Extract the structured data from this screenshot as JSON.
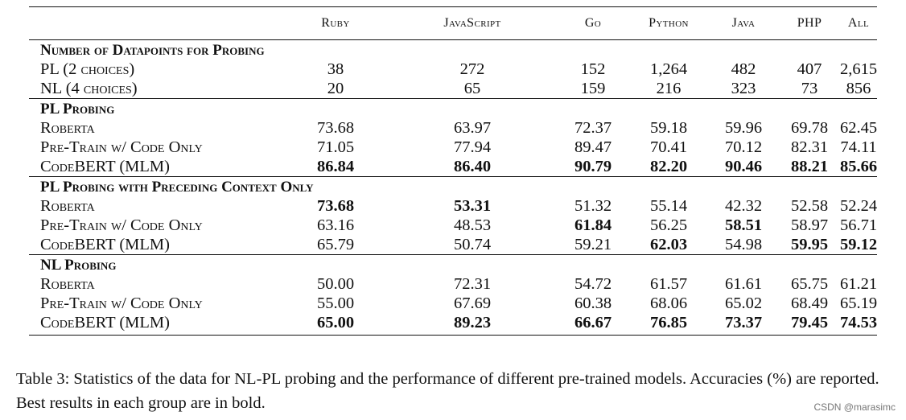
{
  "columns": [
    "Ruby",
    "JavaScript",
    "Go",
    "Python",
    "Java",
    "PHP",
    "All"
  ],
  "groups": [
    {
      "title": "Number of Datapoints for Probing",
      "rows": [
        {
          "label": "PL (2 choices)",
          "values": [
            "38",
            "272",
            "152",
            "1,264",
            "482",
            "407",
            "2,615"
          ],
          "bold": [
            false,
            false,
            false,
            false,
            false,
            false,
            false
          ]
        },
        {
          "label": "NL (4 choices)",
          "values": [
            "20",
            "65",
            "159",
            "216",
            "323",
            "73",
            "856"
          ],
          "bold": [
            false,
            false,
            false,
            false,
            false,
            false,
            false
          ]
        }
      ]
    },
    {
      "title": "PL Probing",
      "rows": [
        {
          "label": "Roberta",
          "values": [
            "73.68",
            "63.97",
            "72.37",
            "59.18",
            "59.96",
            "69.78",
            "62.45"
          ],
          "bold": [
            false,
            false,
            false,
            false,
            false,
            false,
            false
          ]
        },
        {
          "label": "Pre-Train w/ Code Only",
          "values": [
            "71.05",
            "77.94",
            "89.47",
            "70.41",
            "70.12",
            "82.31",
            "74.11"
          ],
          "bold": [
            false,
            false,
            false,
            false,
            false,
            false,
            false
          ]
        },
        {
          "label": "CodeBERT (MLM)",
          "values": [
            "86.84",
            "86.40",
            "90.79",
            "82.20",
            "90.46",
            "88.21",
            "85.66"
          ],
          "bold": [
            true,
            true,
            true,
            true,
            true,
            true,
            true
          ]
        }
      ]
    },
    {
      "title": "PL Probing with Preceding Context Only",
      "rows": [
        {
          "label": "Roberta",
          "values": [
            "73.68",
            "53.31",
            "51.32",
            "55.14",
            "42.32",
            "52.58",
            "52.24"
          ],
          "bold": [
            true,
            true,
            false,
            false,
            false,
            false,
            false
          ]
        },
        {
          "label": "Pre-Train w/ Code Only",
          "values": [
            "63.16",
            "48.53",
            "61.84",
            "56.25",
            "58.51",
            "58.97",
            "56.71"
          ],
          "bold": [
            false,
            false,
            true,
            false,
            true,
            false,
            false
          ]
        },
        {
          "label": "CodeBERT (MLM)",
          "values": [
            "65.79",
            "50.74",
            "59.21",
            "62.03",
            "54.98",
            "59.95",
            "59.12"
          ],
          "bold": [
            false,
            false,
            false,
            true,
            false,
            true,
            true
          ]
        }
      ]
    },
    {
      "title": "NL Probing",
      "rows": [
        {
          "label": "Roberta",
          "values": [
            "50.00",
            "72.31",
            "54.72",
            "61.57",
            "61.61",
            "65.75",
            "61.21"
          ],
          "bold": [
            false,
            false,
            false,
            false,
            false,
            false,
            false
          ]
        },
        {
          "label": "Pre-Train w/ Code Only",
          "values": [
            "55.00",
            "67.69",
            "60.38",
            "68.06",
            "65.02",
            "68.49",
            "65.19"
          ],
          "bold": [
            false,
            false,
            false,
            false,
            false,
            false,
            false
          ]
        },
        {
          "label": "CodeBERT (MLM)",
          "values": [
            "65.00",
            "89.23",
            "66.67",
            "76.85",
            "73.37",
            "79.45",
            "74.53"
          ],
          "bold": [
            true,
            true,
            true,
            true,
            true,
            true,
            true
          ]
        }
      ]
    }
  ],
  "caption": "Table 3:  Statistics of the data for NL-PL probing and the performance of different pre-trained models. Accuracies (%) are reported. Best results in each group are in bold.",
  "watermark": "CSDN @marasimc"
}
